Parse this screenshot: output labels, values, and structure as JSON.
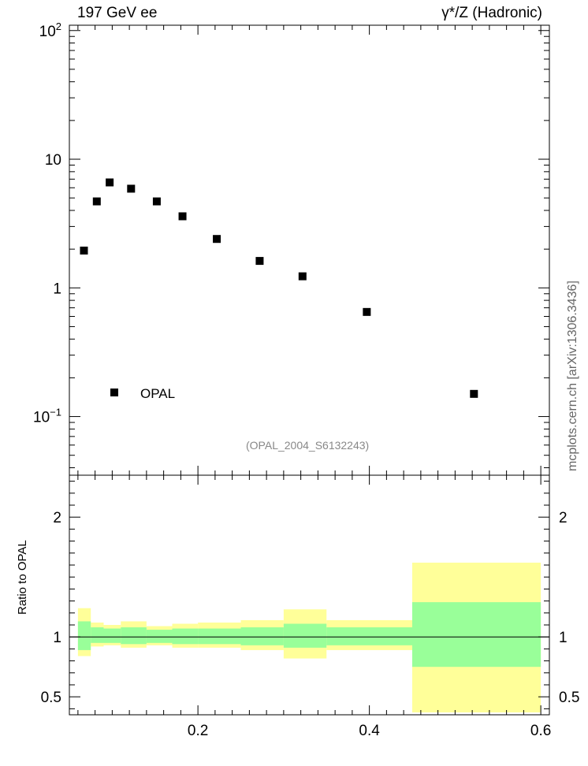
{
  "header": {
    "left": "197 GeV ee",
    "right": "γ*/Z (Hadronic)"
  },
  "side_credit": "mcplots.cern.ch [arXiv:1306.3436]",
  "analysis_id": "(OPAL_2004_S6132243)",
  "chart_data": [
    {
      "type": "scatter",
      "panel": "main",
      "xlim": [
        0.05,
        0.61
      ],
      "ylim": [
        0.035,
        110
      ],
      "yscale": "log",
      "yticks": [
        {
          "value": 0.1,
          "base": "10",
          "exp": "−1"
        },
        {
          "value": 1,
          "text": "1"
        },
        {
          "value": 10,
          "text": "10"
        },
        {
          "value": 100,
          "base": "10",
          "exp": "2"
        }
      ],
      "series": [
        {
          "name": "OPAL",
          "marker": "square",
          "color": "#000000",
          "x": [
            0.067,
            0.082,
            0.097,
            0.122,
            0.152,
            0.182,
            0.222,
            0.272,
            0.322,
            0.397,
            0.522
          ],
          "y": [
            1.95,
            4.7,
            6.6,
            5.9,
            4.7,
            3.6,
            2.4,
            1.62,
            1.23,
            0.65,
            0.15
          ]
        }
      ],
      "legend": {
        "placement": "bottom-left",
        "entries": [
          "OPAL"
        ]
      }
    },
    {
      "type": "area",
      "panel": "ratio",
      "ylabel": "Ratio to OPAL",
      "ylim": [
        0.35,
        2.35
      ],
      "xlim": [
        0.05,
        0.61
      ],
      "yticks": [
        0.5,
        1,
        2
      ],
      "xticks": [
        0.2,
        0.4,
        0.6
      ],
      "reference_line": 1,
      "colors": {
        "stat": "#99ff99",
        "total": "#ffff99",
        "line": "#000000"
      },
      "bins": [
        {
          "x_lo": 0.06,
          "x_hi": 0.075,
          "stat": [
            0.89,
            1.13
          ],
          "total": [
            0.84,
            1.24
          ]
        },
        {
          "x_lo": 0.075,
          "x_hi": 0.09,
          "stat": [
            0.95,
            1.08
          ],
          "total": [
            0.92,
            1.12
          ]
        },
        {
          "x_lo": 0.09,
          "x_hi": 0.11,
          "stat": [
            0.95,
            1.07
          ],
          "total": [
            0.93,
            1.1
          ]
        },
        {
          "x_lo": 0.11,
          "x_hi": 0.14,
          "stat": [
            0.94,
            1.08
          ],
          "total": [
            0.91,
            1.13
          ]
        },
        {
          "x_lo": 0.14,
          "x_hi": 0.17,
          "stat": [
            0.95,
            1.06
          ],
          "total": [
            0.93,
            1.09
          ]
        },
        {
          "x_lo": 0.17,
          "x_hi": 0.2,
          "stat": [
            0.94,
            1.07
          ],
          "total": [
            0.91,
            1.11
          ]
        },
        {
          "x_lo": 0.2,
          "x_hi": 0.25,
          "stat": [
            0.94,
            1.07
          ],
          "total": [
            0.91,
            1.12
          ]
        },
        {
          "x_lo": 0.25,
          "x_hi": 0.3,
          "stat": [
            0.93,
            1.08
          ],
          "total": [
            0.89,
            1.14
          ]
        },
        {
          "x_lo": 0.3,
          "x_hi": 0.35,
          "stat": [
            0.91,
            1.11
          ],
          "total": [
            0.82,
            1.23
          ]
        },
        {
          "x_lo": 0.35,
          "x_hi": 0.45,
          "stat": [
            0.93,
            1.08
          ],
          "total": [
            0.89,
            1.14
          ]
        },
        {
          "x_lo": 0.45,
          "x_hi": 0.6,
          "stat": [
            0.75,
            1.29
          ],
          "total": [
            0.37,
            1.62
          ]
        }
      ]
    }
  ]
}
